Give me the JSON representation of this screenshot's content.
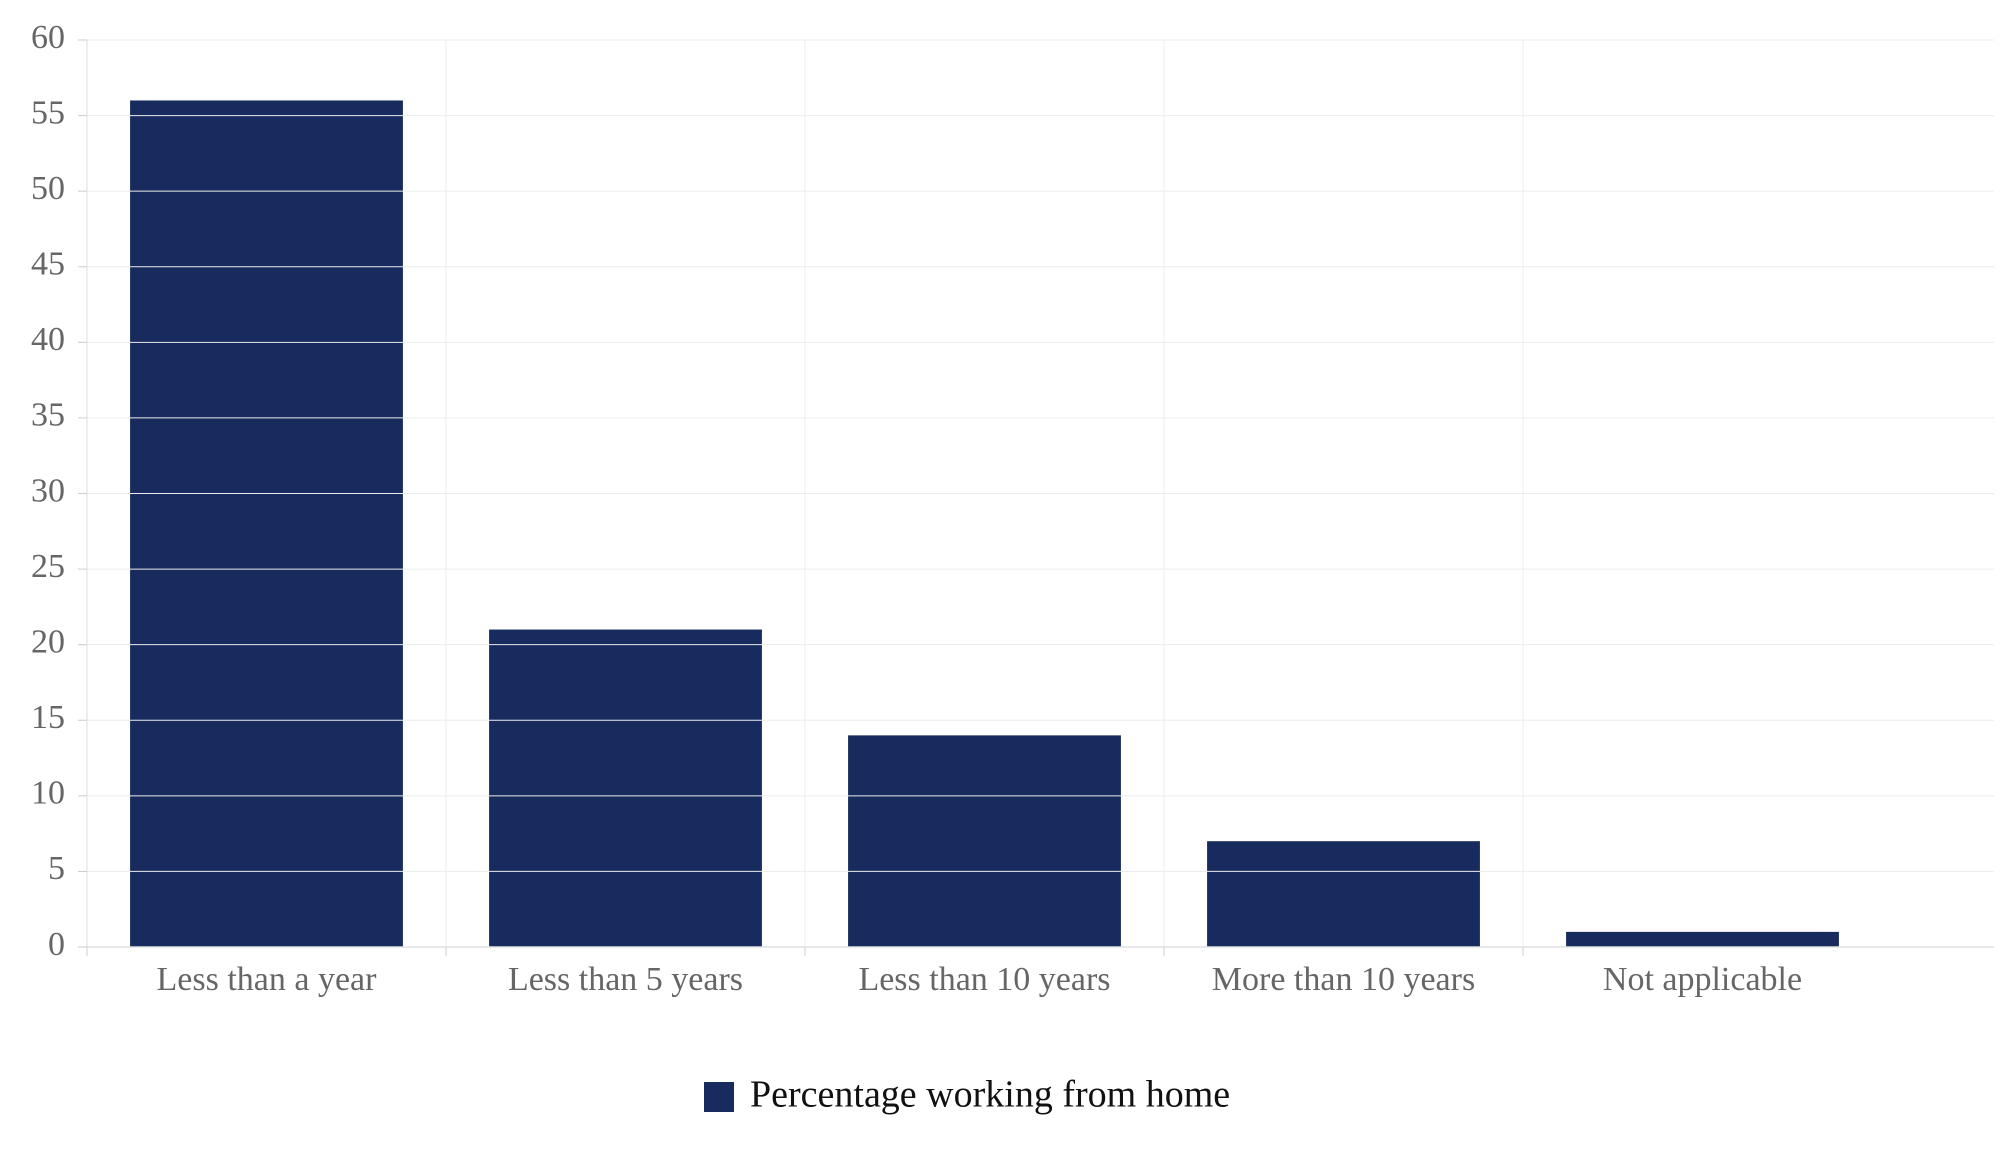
{
  "chart_data": {
    "type": "bar",
    "categories": [
      "Less than a year",
      "Less than 5 years",
      "Less than 10 years",
      "More than 10 years",
      "Not applicable"
    ],
    "series": [
      {
        "name": "Percentage working from home",
        "color": "#172b5e",
        "values": [
          56,
          21,
          14,
          7,
          1
        ]
      }
    ],
    "ylim": [
      0,
      60
    ],
    "yticks": [
      0,
      5,
      10,
      15,
      20,
      25,
      30,
      35,
      40,
      45,
      50,
      55,
      60
    ],
    "grid": true,
    "legend": "bottom"
  }
}
